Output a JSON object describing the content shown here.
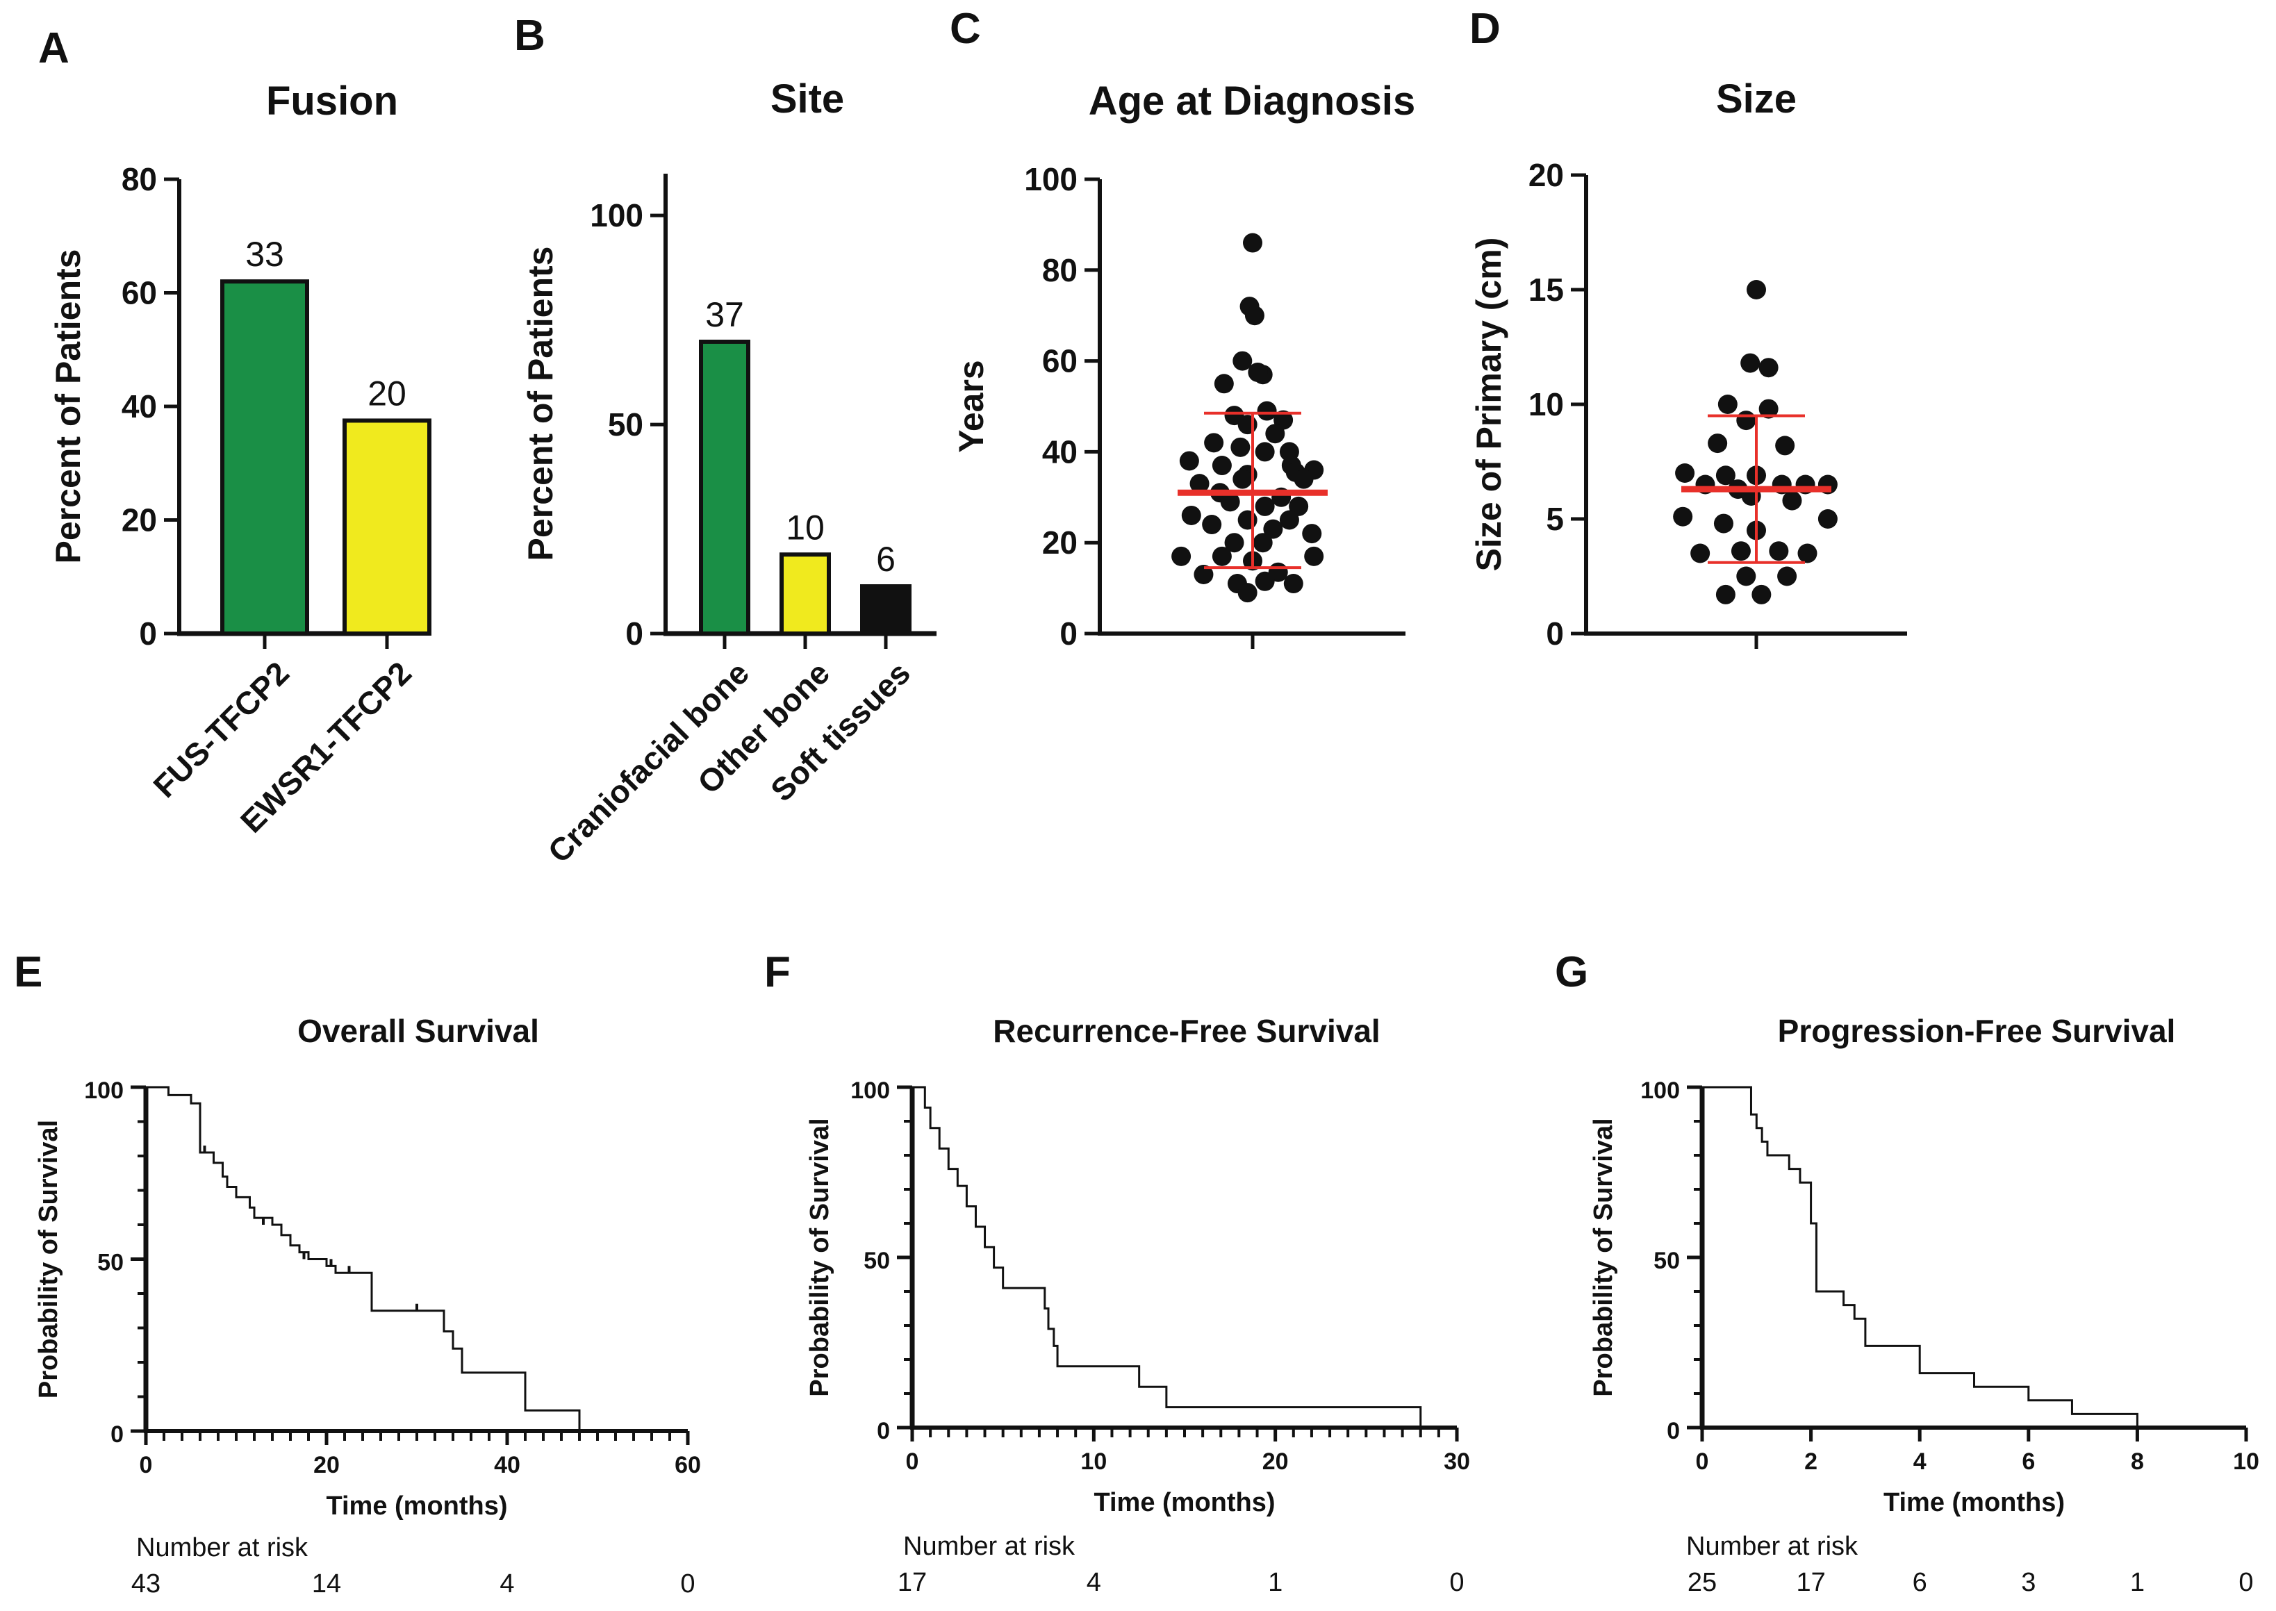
{
  "colors": {
    "green": "#1a8f46",
    "yellow": "#f0ea1e",
    "black": "#111111",
    "red": "#e8302a"
  },
  "chart_data": [
    {
      "panel": "A",
      "type": "bar",
      "title": "Fusion",
      "xlabel": "",
      "ylabel": "Percent of Patients",
      "ylim": [
        0,
        80
      ],
      "yticks": [
        0,
        20,
        40,
        60,
        80
      ],
      "categories": [
        "FUS-TFCP2",
        "EWSR1-TFCP2"
      ],
      "values": [
        62,
        37.5
      ],
      "labels": [
        "33",
        "20"
      ],
      "bar_colors": [
        "#1a8f46",
        "#f0ea1e"
      ]
    },
    {
      "panel": "B",
      "type": "bar",
      "title": "Site",
      "xlabel": "",
      "ylabel": "Percent of Patients",
      "ylim": [
        0,
        110
      ],
      "yticks": [
        0,
        50,
        100
      ],
      "categories": [
        "Craniofacial bone",
        "Other bone",
        "Soft tissues"
      ],
      "values": [
        69.8,
        18.9,
        11.3
      ],
      "labels": [
        "37",
        "10",
        "6"
      ],
      "bar_colors": [
        "#1a8f46",
        "#f0ea1e",
        "#111111"
      ]
    },
    {
      "panel": "C",
      "type": "scatter",
      "title": "Age at Diagnosis",
      "xlabel": "",
      "ylabel": "Years",
      "ylim": [
        0,
        100
      ],
      "yticks": [
        0,
        20,
        40,
        60,
        80,
        100
      ],
      "median": 31,
      "whisker_low": 14.5,
      "whisker_high": 48.5,
      "points": [
        [
          0.0,
          86
        ],
        [
          -0.03,
          72
        ],
        [
          0.02,
          70
        ],
        [
          -0.1,
          60
        ],
        [
          0.1,
          57
        ],
        [
          0.05,
          57.5
        ],
        [
          -0.28,
          55
        ],
        [
          0.14,
          49
        ],
        [
          -0.18,
          48
        ],
        [
          0.3,
          47
        ],
        [
          -0.05,
          46
        ],
        [
          0.22,
          44
        ],
        [
          -0.38,
          42
        ],
        [
          0.36,
          40
        ],
        [
          -0.12,
          41
        ],
        [
          0.12,
          40
        ],
        [
          -0.62,
          38
        ],
        [
          -0.3,
          37
        ],
        [
          0.38,
          37
        ],
        [
          0.6,
          36
        ],
        [
          -0.05,
          35
        ],
        [
          0.42,
          35.5
        ],
        [
          -0.52,
          33
        ],
        [
          -0.1,
          34
        ],
        [
          0.5,
          34
        ],
        [
          -0.32,
          31
        ],
        [
          0.28,
          30
        ],
        [
          -0.22,
          29
        ],
        [
          0.12,
          28
        ],
        [
          0.45,
          28
        ],
        [
          -0.6,
          26
        ],
        [
          -0.05,
          25
        ],
        [
          0.36,
          25
        ],
        [
          -0.4,
          24
        ],
        [
          0.2,
          23
        ],
        [
          0.58,
          22
        ],
        [
          -0.18,
          20
        ],
        [
          0.1,
          20
        ],
        [
          -0.7,
          17
        ],
        [
          -0.3,
          17
        ],
        [
          0.6,
          17
        ],
        [
          0.0,
          16
        ],
        [
          -0.48,
          13
        ],
        [
          0.25,
          13.5
        ],
        [
          -0.15,
          11
        ],
        [
          0.12,
          11.5
        ],
        [
          0.4,
          11
        ],
        [
          -0.05,
          9
        ]
      ]
    },
    {
      "panel": "D",
      "type": "scatter",
      "title": "Size",
      "xlabel": "",
      "ylabel": "Size of Primary (cm)",
      "ylim": [
        0,
        20
      ],
      "yticks": [
        0,
        5,
        10,
        15,
        20
      ],
      "median": 6.3,
      "whisker_low": 3.1,
      "whisker_high": 9.5,
      "points": [
        [
          0.0,
          15
        ],
        [
          -0.06,
          11.8
        ],
        [
          0.12,
          11.6
        ],
        [
          -0.28,
          10
        ],
        [
          0.12,
          9.8
        ],
        [
          -0.1,
          9.3
        ],
        [
          -0.38,
          8.3
        ],
        [
          0.28,
          8.2
        ],
        [
          -0.7,
          7
        ],
        [
          -0.3,
          6.9
        ],
        [
          0.0,
          6.9
        ],
        [
          -0.5,
          6.5
        ],
        [
          -0.18,
          6.3
        ],
        [
          0.25,
          6.5
        ],
        [
          0.48,
          6.5
        ],
        [
          0.7,
          6.5
        ],
        [
          -0.05,
          6.0
        ],
        [
          0.35,
          5.8
        ],
        [
          -0.72,
          5.1
        ],
        [
          0.7,
          5.0
        ],
        [
          -0.32,
          4.8
        ],
        [
          0.0,
          4.5
        ],
        [
          -0.15,
          3.6
        ],
        [
          0.22,
          3.6
        ],
        [
          -0.55,
          3.5
        ],
        [
          0.5,
          3.5
        ],
        [
          -0.1,
          2.5
        ],
        [
          0.3,
          2.5
        ],
        [
          -0.3,
          1.7
        ],
        [
          0.05,
          1.7
        ]
      ]
    },
    {
      "panel": "E",
      "type": "line",
      "subtype": "kaplan-meier",
      "title": "Overall Survival",
      "xlabel": "Time (months)",
      "ylabel": "Probability of Survival",
      "xlim": [
        0,
        60
      ],
      "ylim": [
        0,
        100
      ],
      "xticks": [
        0,
        20,
        40,
        60
      ],
      "yticks": [
        0,
        50,
        100
      ],
      "x_minor_step": 2,
      "steps": [
        [
          0,
          100
        ],
        [
          1,
          100
        ],
        [
          2.5,
          97.7
        ],
        [
          5,
          95.3
        ],
        [
          6,
          88
        ],
        [
          6,
          81
        ],
        [
          7.5,
          78
        ],
        [
          8.5,
          74
        ],
        [
          9,
          71
        ],
        [
          10,
          68
        ],
        [
          11.5,
          65
        ],
        [
          12,
          62
        ],
        [
          14,
          60
        ],
        [
          15,
          57
        ],
        [
          16,
          54
        ],
        [
          17,
          52
        ],
        [
          18,
          50
        ],
        [
          19,
          50
        ],
        [
          20,
          48
        ],
        [
          21,
          46
        ],
        [
          23,
          46
        ],
        [
          25,
          42
        ],
        [
          25,
          35
        ],
        [
          29,
          35
        ],
        [
          32,
          35
        ],
        [
          33,
          29
        ],
        [
          34,
          24
        ],
        [
          35,
          17
        ],
        [
          42,
          17
        ],
        [
          42,
          6
        ],
        [
          48,
          6
        ],
        [
          48,
          0
        ]
      ],
      "censor": [
        [
          6.5,
          81
        ],
        [
          13,
          60
        ],
        [
          17.5,
          50
        ],
        [
          20.5,
          48
        ],
        [
          22.5,
          46
        ],
        [
          30,
          35
        ]
      ],
      "risk_times": [
        0,
        20,
        40,
        60
      ],
      "risk_values": [
        "43",
        "14",
        "4",
        "0"
      ],
      "risk_title": "Number at risk"
    },
    {
      "panel": "F",
      "type": "line",
      "subtype": "kaplan-meier",
      "title": "Recurrence-Free Survival",
      "xlabel": "Time (months)",
      "ylabel": "Probability of Survival",
      "xlim": [
        0,
        30
      ],
      "ylim": [
        0,
        100
      ],
      "xticks": [
        0,
        10,
        20,
        30
      ],
      "yticks": [
        0,
        50,
        100
      ],
      "x_minor_step": 1,
      "steps": [
        [
          0,
          100
        ],
        [
          0.6,
          100
        ],
        [
          0.7,
          94
        ],
        [
          1,
          88
        ],
        [
          1.5,
          82
        ],
        [
          2,
          76
        ],
        [
          2.5,
          71
        ],
        [
          3,
          65
        ],
        [
          3.5,
          59
        ],
        [
          4,
          53
        ],
        [
          4.5,
          47
        ],
        [
          5,
          41
        ],
        [
          7,
          41
        ],
        [
          7.3,
          35
        ],
        [
          7.5,
          29
        ],
        [
          7.8,
          24
        ],
        [
          8,
          18
        ],
        [
          12,
          18
        ],
        [
          12.5,
          12
        ],
        [
          14,
          12
        ],
        [
          14,
          6
        ],
        [
          28,
          6
        ],
        [
          28,
          0
        ]
      ],
      "censor": [],
      "risk_times": [
        0,
        10,
        20,
        30
      ],
      "risk_values": [
        "17",
        "4",
        "1",
        "0"
      ],
      "risk_title": "Number at risk"
    },
    {
      "panel": "G",
      "type": "line",
      "subtype": "kaplan-meier",
      "title": "Progression-Free Survival",
      "xlabel": "Time (months)",
      "ylabel": "Probability of Survival",
      "xlim": [
        0,
        10
      ],
      "ylim": [
        0,
        100
      ],
      "xticks": [
        0,
        2,
        4,
        6,
        8,
        10
      ],
      "yticks": [
        0,
        50,
        100
      ],
      "x_minor_step": 0,
      "steps": [
        [
          0,
          100
        ],
        [
          0.8,
          100
        ],
        [
          0.9,
          92
        ],
        [
          1.0,
          88
        ],
        [
          1.1,
          84
        ],
        [
          1.2,
          80
        ],
        [
          1.5,
          80
        ],
        [
          1.6,
          76
        ],
        [
          1.8,
          72
        ],
        [
          2,
          72
        ],
        [
          2,
          60
        ],
        [
          2.1,
          52
        ],
        [
          2.1,
          40
        ],
        [
          2.3,
          40
        ],
        [
          2.6,
          36
        ],
        [
          2.8,
          32
        ],
        [
          3,
          24
        ],
        [
          4,
          24
        ],
        [
          4,
          16
        ],
        [
          5,
          16
        ],
        [
          5,
          12
        ],
        [
          6,
          12
        ],
        [
          6,
          8
        ],
        [
          6.8,
          8
        ],
        [
          6.8,
          4
        ],
        [
          8,
          4
        ],
        [
          8,
          0
        ],
        [
          10,
          0
        ]
      ],
      "censor": [],
      "risk_times": [
        0,
        2,
        4,
        6,
        8,
        10
      ],
      "risk_values": [
        "25",
        "17",
        "6",
        "3",
        "1",
        "0"
      ],
      "risk_title": "Number at risk"
    }
  ]
}
